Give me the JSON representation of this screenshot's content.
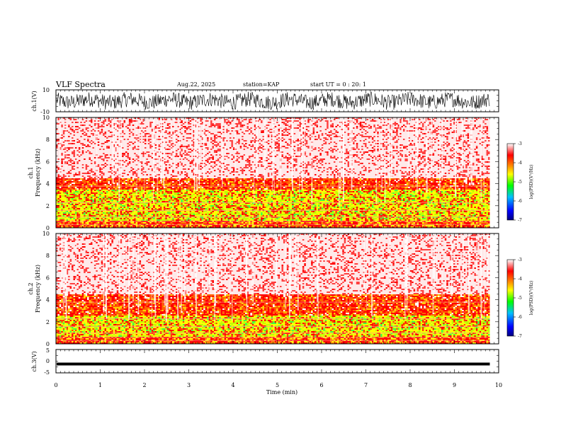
{
  "header": {
    "title": "VLF Spectra",
    "date": "Aug.22, 2025",
    "station": "station=KAP",
    "start": "start UT =  0 : 20: 1"
  },
  "colors": {
    "spec_low": "#0000ff",
    "spec_mid": "#00ff00",
    "spec_hi_mid": "#ffff00",
    "spec_high": "#ff0000",
    "waveform": "#000000"
  },
  "chart_data": [
    {
      "type": "line",
      "name": "ch1-waveform",
      "ylabel": "ch.1(V)",
      "ylim": [
        -10,
        10
      ],
      "yticks": [
        "10",
        "-10"
      ],
      "xlim": [
        0,
        10
      ],
      "description_values": "noisy waveform approx. -6 to +7 V across 0-9.8 min"
    },
    {
      "type": "heatmap",
      "name": "ch1-spectrogram",
      "ylabel": "ch.1\nFrequency (kHz)",
      "ylabel_line1": "ch.1",
      "ylabel_line2": "Frequency (kHz)",
      "ylim": [
        0,
        10
      ],
      "yticks": [
        "0",
        "2",
        "4",
        "6",
        "8",
        "10"
      ],
      "xlim": [
        0,
        10
      ],
      "data_end_min": 9.8,
      "bands": [
        {
          "from_khz": 0,
          "to_khz": 0.6,
          "level": "mid"
        },
        {
          "from_khz": 0.6,
          "to_khz": 3.4,
          "level": "low"
        },
        {
          "from_khz": 3.4,
          "to_khz": 4.5,
          "level": "medium"
        },
        {
          "from_khz": 4.5,
          "to_khz": 10,
          "level": "high"
        }
      ],
      "colorbar": {
        "label": "log(PSD)(V²/Hz)",
        "range": [
          -7,
          -3
        ],
        "ticks": [
          "-3",
          "-4",
          "-5",
          "-6",
          "-7"
        ]
      }
    },
    {
      "type": "heatmap",
      "name": "ch2-spectrogram",
      "ylabel": "ch.2\nFrequency (kHz)",
      "ylabel_line1": "ch.2",
      "ylabel_line2": "Frequency (kHz)",
      "ylim": [
        0,
        10
      ],
      "yticks": [
        "0",
        "2",
        "4",
        "6",
        "8",
        "10"
      ],
      "xlim": [
        0,
        10
      ],
      "data_end_min": 9.8,
      "bands": [
        {
          "from_khz": 0,
          "to_khz": 0.6,
          "level": "mid"
        },
        {
          "from_khz": 0.6,
          "to_khz": 2.6,
          "level": "low"
        },
        {
          "from_khz": 2.6,
          "to_khz": 4.5,
          "level": "medium"
        },
        {
          "from_khz": 4.5,
          "to_khz": 10,
          "level": "high"
        }
      ],
      "colorbar": {
        "label": "log(PSD)(V²/Hz)",
        "range": [
          -7,
          -3
        ],
        "ticks": [
          "-3",
          "-4",
          "-5",
          "-6",
          "-7"
        ]
      }
    },
    {
      "type": "line",
      "name": "ch3-waveform",
      "ylabel": "ch.3(V)",
      "ylim": [
        -5,
        5
      ],
      "yticks": [
        "5",
        "0",
        "-5"
      ],
      "xlim": [
        0,
        10
      ],
      "xlabel": "Time (min)",
      "xticks": [
        "0",
        "1",
        "2",
        "3",
        "4",
        "5",
        "6",
        "7",
        "8",
        "9",
        "10"
      ],
      "description_values": "near-constant trace around -1 V, thin band"
    }
  ]
}
